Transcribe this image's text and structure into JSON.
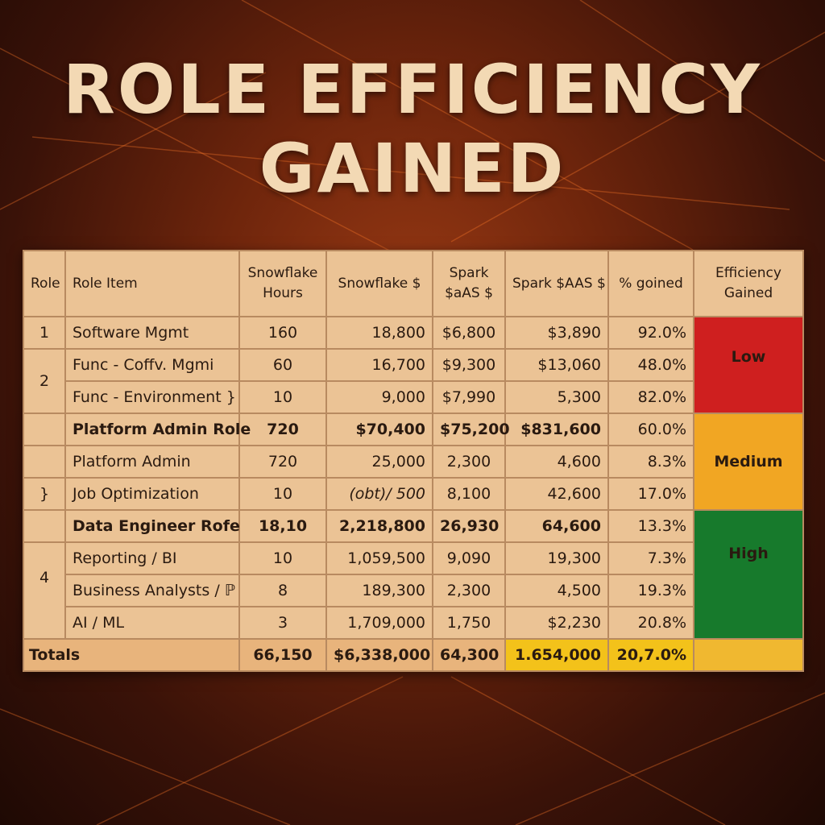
{
  "title": {
    "line1": "ROLE EFFICIENCY",
    "line2": "GAINED"
  },
  "table": {
    "headers": {
      "role": "Role",
      "role_item": "Role Item",
      "sf_hours_1": "Snowflake",
      "sf_hours_2": "Hours",
      "sf_dollars": "Snowflake $",
      "spark_saas_1": "Spark",
      "spark_saas_2": "$aAS $",
      "spark_dollars": "Spark $AAS $",
      "pct": "% goined",
      "eff_1": "Efficiency",
      "eff_2": "Gained"
    },
    "rows": [
      {
        "role": "1",
        "item": "Software Mgmt",
        "hours": "160",
        "sf": "18,800",
        "spark_saas": "$6,800",
        "spark": "$3,890",
        "pct": "92.0%"
      },
      {
        "role": "2",
        "item": "Func - Coffv. Mgmi",
        "hours": "60",
        "sf": "16,700",
        "spark_saas": "$9,300",
        "spark": "$13,060",
        "pct": "48.0%"
      },
      {
        "role": "",
        "item": "Func - Environment }",
        "hours": "10",
        "sf": "9,000",
        "spark_saas": "$7,990",
        "spark": "5,300",
        "pct": "82.0%"
      },
      {
        "role": "",
        "item": "Platform Admin Role",
        "hours": "720",
        "sf": "$70,400",
        "spark_saas": "$75,200",
        "spark": "$831,600",
        "pct": "60.0%"
      },
      {
        "role": "",
        "item": "Platform Admin",
        "hours": "720",
        "sf": "25,000",
        "spark_saas": "2,300",
        "spark": "4,600",
        "pct": "8.3%"
      },
      {
        "role": "}",
        "item": "Job Optimization",
        "hours": "10",
        "sf": "(obt)/ 500",
        "spark_saas": "8,100",
        "spark": "42,600",
        "pct": "17.0%"
      },
      {
        "role": "",
        "item": "Data Engineer Rofe",
        "hours": "18,10",
        "sf": "2,218,800",
        "spark_saas": "26,930",
        "spark": "64,600",
        "pct": "13.3%"
      },
      {
        "role": "4",
        "item": "Reporting / BI",
        "hours": "10",
        "sf": "1,059,500",
        "spark_saas": "9,090",
        "spark": "19,300",
        "pct": "7.3%"
      },
      {
        "role": "",
        "item": "Business Analysts / ℙ",
        "hours": "8",
        "sf": "189,300",
        "spark_saas": "2,300",
        "spark": "4,500",
        "pct": "19.3%"
      },
      {
        "role": "",
        "item": "AI / ML",
        "hours": "3",
        "sf": "1,709,000",
        "spark_saas": "1,750",
        "spark": "$2,230",
        "pct": "20.8%"
      }
    ],
    "efficiency": {
      "low": "Low",
      "medium": "Medium",
      "high": "High"
    },
    "totals": {
      "label": "Totals",
      "hours": "66,150",
      "sf": "$6,338,000",
      "spark_saas": "64,300",
      "spark": "1.654,000",
      "pct": "20,7.0%"
    }
  },
  "colors": {
    "low": "#cf1f1f",
    "medium": "#f1a623",
    "high": "#177a2c",
    "highlight": "#f3c21a",
    "table_bg": "#ebc395",
    "title": "#f3d9b4"
  }
}
